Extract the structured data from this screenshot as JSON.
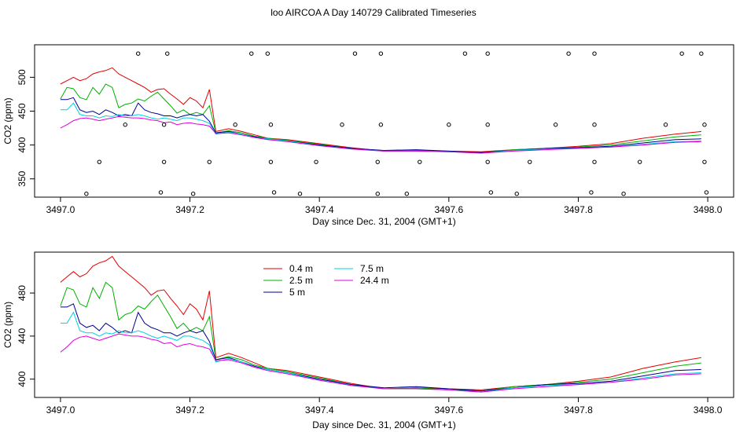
{
  "title": "loo AIRCOA A  Day 140729  Calibrated Timeseries",
  "chart_data": [
    {
      "type": "scatter",
      "xlabel": "Day since Dec. 31, 2004 (GMT+1)",
      "ylabel": "CO2 (ppm)",
      "xlim": [
        3496.96,
        3498.04
      ],
      "ylim": [
        323,
        548
      ],
      "xticks": [
        "3497.0",
        "3497.2",
        "3497.4",
        "3497.6",
        "3497.8",
        "3498.0"
      ],
      "yticks": [
        "350",
        "400",
        "450",
        "500"
      ],
      "series": [
        {
          "color": "#e00000",
          "x": [
            3497.0,
            3497.01,
            3497.02,
            3497.03,
            3497.04,
            3497.05,
            3497.06,
            3497.07,
            3497.08,
            3497.09,
            3497.1,
            3497.11,
            3497.12,
            3497.13,
            3497.14,
            3497.15,
            3497.16,
            3497.17,
            3497.18,
            3497.19,
            3497.2,
            3497.21,
            3497.22,
            3497.23,
            3497.24,
            3497.26,
            3497.28,
            3497.3,
            3497.32,
            3497.35,
            3497.4,
            3497.45,
            3497.5,
            3497.55,
            3497.6,
            3497.65,
            3497.7,
            3497.75,
            3497.8,
            3497.85,
            3497.9,
            3497.95,
            3497.99
          ],
          "y": [
            490,
            495,
            500,
            495,
            498,
            505,
            508,
            510,
            514,
            505,
            500,
            495,
            490,
            485,
            478,
            482,
            483,
            475,
            468,
            460,
            470,
            465,
            455,
            482,
            420,
            424,
            420,
            415,
            410,
            408,
            402,
            396,
            391,
            392,
            391,
            390,
            393,
            395,
            398,
            402,
            410,
            416,
            420
          ]
        },
        {
          "color": "#00b000",
          "x": [
            3497.0,
            3497.01,
            3497.02,
            3497.03,
            3497.04,
            3497.05,
            3497.06,
            3497.07,
            3497.08,
            3497.09,
            3497.1,
            3497.11,
            3497.12,
            3497.13,
            3497.14,
            3497.15,
            3497.16,
            3497.17,
            3497.18,
            3497.19,
            3497.2,
            3497.21,
            3497.22,
            3497.23,
            3497.24,
            3497.26,
            3497.28,
            3497.3,
            3497.32,
            3497.35,
            3497.4,
            3497.45,
            3497.5,
            3497.55,
            3497.6,
            3497.65,
            3497.7,
            3497.75,
            3497.8,
            3497.85,
            3497.9,
            3497.95,
            3497.99
          ],
          "y": [
            468,
            485,
            483,
            470,
            467,
            485,
            475,
            490,
            485,
            455,
            460,
            462,
            468,
            465,
            472,
            478,
            468,
            458,
            447,
            452,
            445,
            448,
            445,
            458,
            418,
            421,
            418,
            413,
            410,
            407,
            401,
            395,
            391,
            392,
            390,
            389,
            393,
            395,
            397,
            400,
            406,
            412,
            415
          ]
        },
        {
          "color": "#000090",
          "x": [
            3497.0,
            3497.01,
            3497.02,
            3497.03,
            3497.04,
            3497.05,
            3497.06,
            3497.07,
            3497.08,
            3497.09,
            3497.1,
            3497.11,
            3497.12,
            3497.13,
            3497.14,
            3497.15,
            3497.16,
            3497.17,
            3497.18,
            3497.19,
            3497.2,
            3497.21,
            3497.22,
            3497.23,
            3497.24,
            3497.26,
            3497.28,
            3497.3,
            3497.32,
            3497.35,
            3497.4,
            3497.45,
            3497.5,
            3497.55,
            3497.6,
            3497.65,
            3497.7,
            3497.75,
            3497.8,
            3497.85,
            3497.9,
            3497.95,
            3497.99
          ],
          "y": [
            467,
            467,
            470,
            452,
            448,
            450,
            445,
            452,
            448,
            443,
            445,
            443,
            462,
            452,
            448,
            446,
            443,
            443,
            440,
            443,
            445,
            443,
            445,
            435,
            418,
            420,
            416,
            412,
            409,
            406,
            400,
            395,
            392,
            393,
            391,
            389,
            392,
            395,
            396,
            398,
            403,
            408,
            409
          ]
        },
        {
          "color": "#00d0e0",
          "x": [
            3497.0,
            3497.01,
            3497.02,
            3497.03,
            3497.04,
            3497.05,
            3497.06,
            3497.07,
            3497.08,
            3497.09,
            3497.1,
            3497.11,
            3497.12,
            3497.13,
            3497.14,
            3497.15,
            3497.16,
            3497.17,
            3497.18,
            3497.19,
            3497.2,
            3497.21,
            3497.22,
            3497.23,
            3497.24,
            3497.26,
            3497.28,
            3497.3,
            3497.32,
            3497.35,
            3497.4,
            3497.45,
            3497.5,
            3497.55,
            3497.6,
            3497.65,
            3497.7,
            3497.75,
            3497.8,
            3497.85,
            3497.9,
            3497.95,
            3497.99
          ],
          "y": [
            452,
            452,
            462,
            445,
            443,
            443,
            440,
            443,
            442,
            445,
            443,
            443,
            445,
            443,
            440,
            438,
            440,
            438,
            436,
            440,
            440,
            438,
            436,
            432,
            416,
            419,
            416,
            411,
            409,
            406,
            399,
            394,
            391,
            391,
            390,
            388,
            392,
            394,
            395,
            397,
            401,
            405,
            406
          ]
        },
        {
          "color": "#e000e0",
          "x": [
            3497.0,
            3497.01,
            3497.02,
            3497.03,
            3497.04,
            3497.05,
            3497.06,
            3497.07,
            3497.08,
            3497.09,
            3497.1,
            3497.11,
            3497.12,
            3497.13,
            3497.14,
            3497.15,
            3497.16,
            3497.17,
            3497.18,
            3497.19,
            3497.2,
            3497.21,
            3497.22,
            3497.23,
            3497.24,
            3497.26,
            3497.28,
            3497.3,
            3497.32,
            3497.35,
            3497.4,
            3497.45,
            3497.5,
            3497.55,
            3497.6,
            3497.65,
            3497.7,
            3497.75,
            3497.8,
            3497.85,
            3497.9,
            3497.95,
            3497.99
          ],
          "y": [
            425,
            430,
            436,
            439,
            440,
            438,
            436,
            438,
            440,
            442,
            441,
            440,
            440,
            439,
            437,
            436,
            433,
            434,
            430,
            432,
            433,
            431,
            430,
            428,
            417,
            418,
            415,
            411,
            408,
            405,
            399,
            394,
            391,
            391,
            390,
            388,
            391,
            393,
            395,
            397,
            400,
            404,
            405
          ]
        }
      ],
      "points": {
        "x": [
          3497.04,
          3497.06,
          3497.1,
          3497.12,
          3497.155,
          3497.16,
          3497.16,
          3497.165,
          3497.205,
          3497.23,
          3497.27,
          3497.295,
          3497.32,
          3497.325,
          3497.325,
          3497.33,
          3497.37,
          3497.395,
          3497.435,
          3497.455,
          3497.49,
          3497.49,
          3497.495,
          3497.495,
          3497.535,
          3497.555,
          3497.6,
          3497.625,
          3497.66,
          3497.66,
          3497.66,
          3497.665,
          3497.705,
          3497.725,
          3497.765,
          3497.785,
          3497.82,
          3497.825,
          3497.825,
          3497.825,
          3497.87,
          3497.895,
          3497.935,
          3497.96,
          3497.99,
          3497.995,
          3497.995,
          3497.998
        ],
        "y": [
          328,
          375,
          430,
          535,
          330,
          375,
          430,
          535,
          328,
          375,
          430,
          535,
          535,
          430,
          375,
          330,
          328,
          375,
          430,
          535,
          328,
          375,
          430,
          535,
          328,
          375,
          430,
          535,
          535,
          430,
          375,
          330,
          328,
          375,
          430,
          535,
          330,
          375,
          430,
          535,
          328,
          375,
          430,
          535,
          535,
          430,
          375,
          330
        ]
      }
    },
    {
      "type": "line",
      "xlabel": "Day since Dec. 31, 2004 (GMT+1)",
      "ylabel": "CO2 (ppm)",
      "xlim": [
        3496.96,
        3498.04
      ],
      "ylim": [
        383,
        518
      ],
      "xticks": [
        "3497.0",
        "3497.2",
        "3497.4",
        "3497.6",
        "3497.8",
        "3498.0"
      ],
      "yticks": [
        "400",
        "440",
        "480"
      ],
      "legend": [
        {
          "label": "0.4 m",
          "color": "#e00000"
        },
        {
          "label": "2.5 m",
          "color": "#00b000"
        },
        {
          "label": "5 m",
          "color": "#000090"
        },
        {
          "label": "7.5 m",
          "color": "#00d0e0"
        },
        {
          "label": "24.4 m",
          "color": "#e000e0"
        }
      ],
      "legend_position": "top-left",
      "series_ref": "same as first panel"
    }
  ]
}
